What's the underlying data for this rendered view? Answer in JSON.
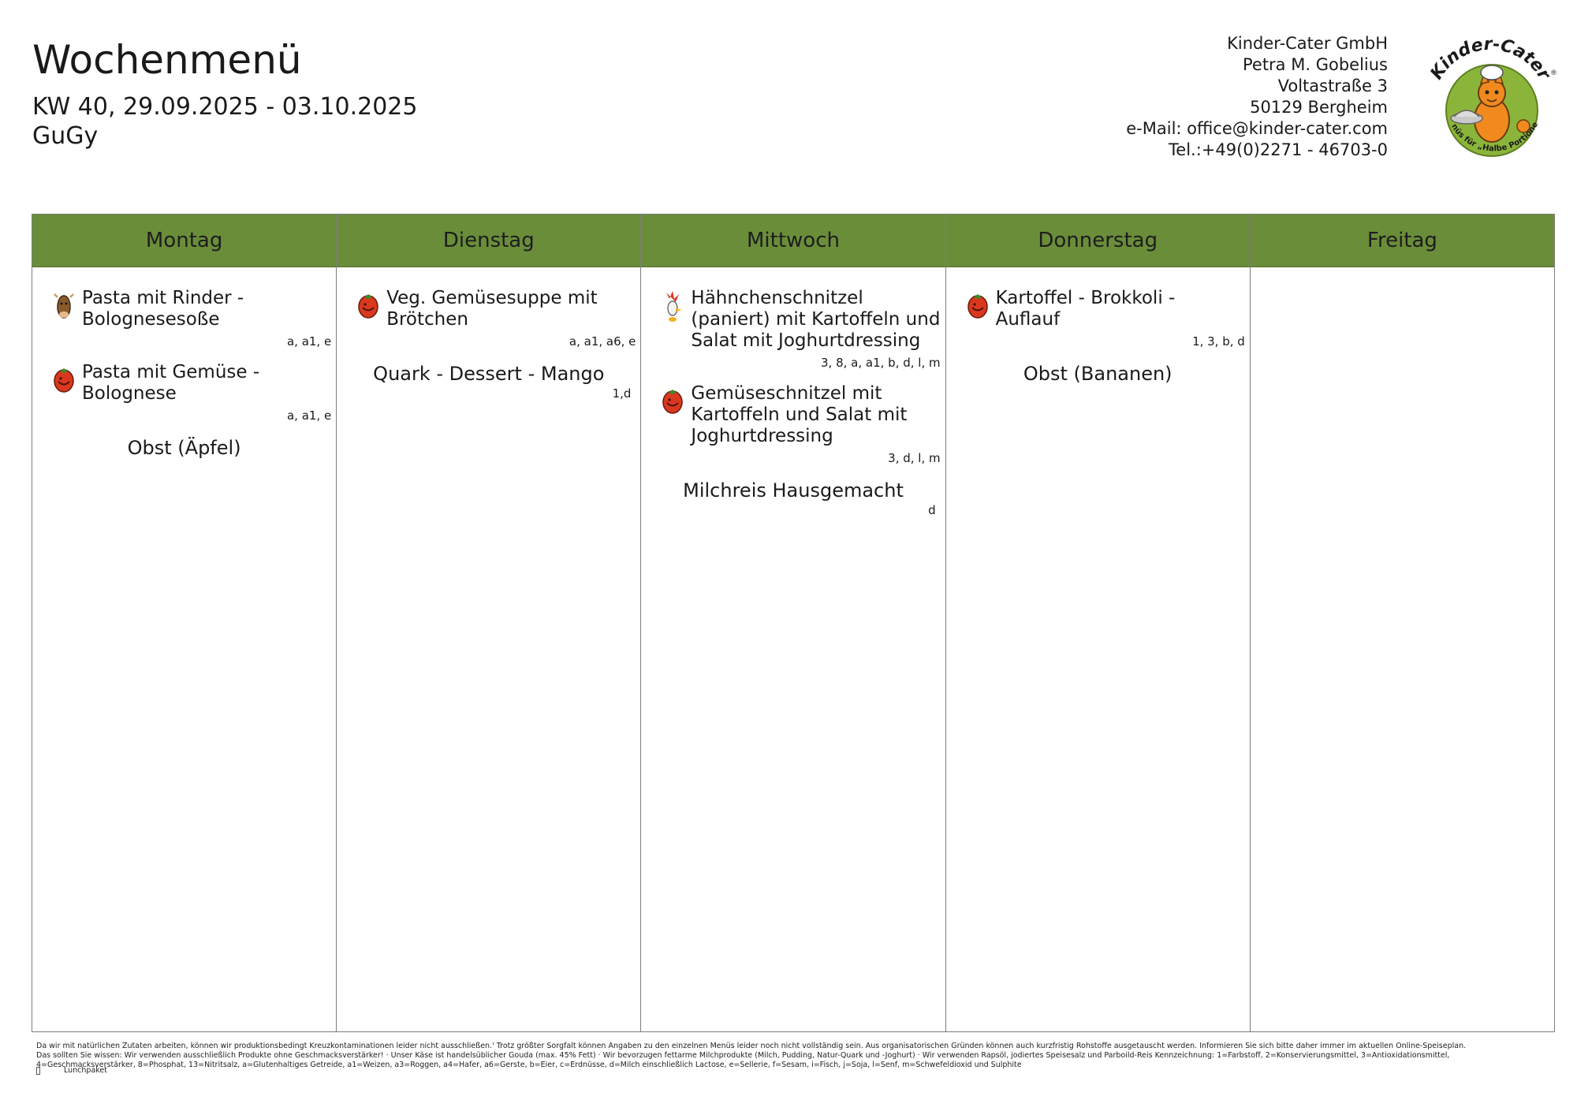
{
  "header": {
    "title": "Wochenmenü",
    "week": "KW 40, 29.09.2025 - 03.10.2025",
    "location": "GuGy"
  },
  "company": {
    "name": "Kinder-Cater GmbH",
    "person": "Petra M. Gobelius",
    "street": "Voltastraße 3",
    "city": "50129 Bergheim",
    "email": "e-Mail: office@kinder-cater.com",
    "phone": "Tel.:+49(0)2271 - 46703-0"
  },
  "logo": {
    "arc_text": "Kinder-Cater",
    "bottom_text": "Menüs für „Halbe Portionen“",
    "registered": "®"
  },
  "colors": {
    "header_green": "#6a8d3a",
    "logo_green": "#8bb53a",
    "logo_orange": "#f08a1f",
    "tomato_red": "#d9381e"
  },
  "days": [
    {
      "name": "Montag",
      "dishes": [
        {
          "icon": "cow-icon",
          "name": "Pasta mit Rinder - Bolognesesoße",
          "allergens": "a, a1, e"
        },
        {
          "icon": "tomato-icon",
          "name": "Pasta mit Gemüse - Bolognese",
          "allergens": "a, a1, e"
        }
      ],
      "dessert": {
        "name": "Obst (Äpfel)",
        "allergens": ""
      }
    },
    {
      "name": "Dienstag",
      "dishes": [
        {
          "icon": "tomato-icon",
          "name": "Veg. Gemüsesuppe mit Brötchen",
          "allergens": "a, a1, a6, e"
        }
      ],
      "dessert": {
        "name": "Quark - Dessert - Mango",
        "allergens": "1,d"
      }
    },
    {
      "name": "Mittwoch",
      "dishes": [
        {
          "icon": "chicken-icon",
          "name": "Hähnchenschnitzel (paniert) mit Kartoffeln und Salat mit Joghurtdressing",
          "allergens": "3, 8, a, a1, b, d, l, m"
        },
        {
          "icon": "tomato-icon",
          "name": "Gemüseschnitzel mit Kartoffeln und Salat mit Joghurtdressing",
          "allergens": "3, d, l, m"
        }
      ],
      "dessert": {
        "name": "Milchreis Hausgemacht",
        "allergens": "d"
      }
    },
    {
      "name": "Donnerstag",
      "dishes": [
        {
          "icon": "tomato-icon",
          "name": "Kartoffel - Brokkoli - Auflauf",
          "allergens": "1, 3, b, d"
        }
      ],
      "dessert": {
        "name": "Obst (Bananen)",
        "allergens": ""
      }
    },
    {
      "name": "Freitag",
      "dishes": [],
      "dessert": {
        "name": "",
        "allergens": ""
      }
    }
  ],
  "footer": {
    "text": "Da wir mit natürlichen Zutaten arbeiten, können wir produktionsbedingt Kreuzkontaminationen leider nicht ausschließen.' Trotz größter Sorgfalt können Angaben zu den einzelnen Menüs leider noch nicht vollständig sein. Aus organisatorischen Gründen können auch kurzfristig Rohstoffe ausgetauscht werden. Informieren Sie sich bitte daher immer im aktuellen Online-Speiseplan. Das sollten Sie wissen: Wir verwenden ausschließlich Produkte ohne Geschmacksverstärker! · Unser Käse ist handelsüblicher Gouda (max. 45% Fett) · Wir bevorzugen fettarme Milchprodukte (Milch, Pudding, Natur-Quark und -Joghurt) · Wir verwenden Rapsöl, jodiertes Speisesalz und Parboild-Reis Kennzeichnung: 1=Farbstoff, 2=Konservierungsmittel, 3=Antioxidationsmittel, 4=Geschmacksverstärker, 8=Phosphat, 13=Nitritsalz, a=Glutenhaltiges Getreide, a1=Weizen, a3=Roggen, a4=Hafer, a6=Gerste, b=Eier, c=Erdnüsse, d=Milch einschließlich Lactose, e=Sellerie, f=Sesam, i=Fisch, j=Soja, l=Senf, m=Schwefeldioxid und Sulphite",
    "legend_label": "Lunchpaket"
  }
}
